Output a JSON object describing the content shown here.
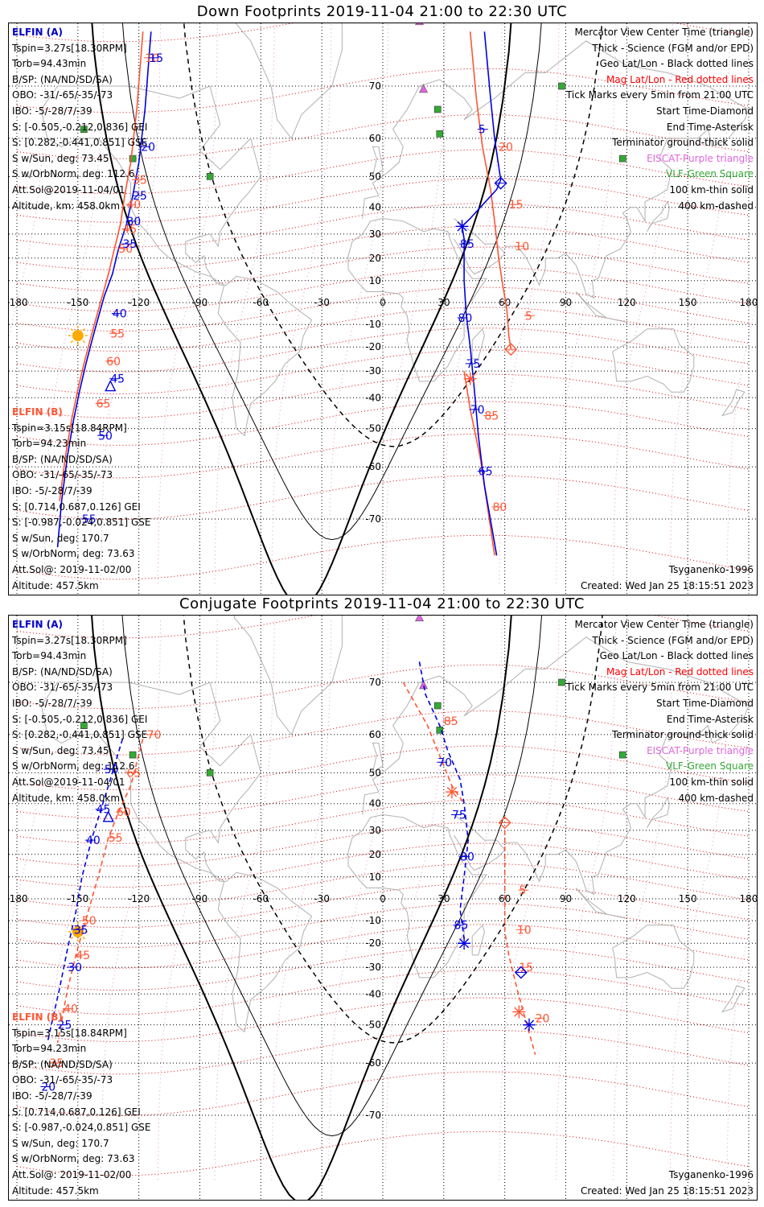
{
  "panels": [
    {
      "title": "Down Footprints 2019-11-04 21:00 to 22:30 UTC",
      "conjugate": false
    },
    {
      "title": "Conjugate Footprints 2019-11-04 21:00 to 22:30 UTC",
      "conjugate": true
    }
  ],
  "elfin_a": {
    "header": "ELFIN (A)",
    "lines": [
      "Tspin=3.27s[18.30RPM]",
      "Torb=94.43min",
      "B/SP: (NA/ND/SD/SA)",
      "OBO: -31/-65/-35/-73",
      "IBO: -5/-28/7/-39",
      "S: [-0.505,-0.212,0.836] GEI",
      "S: [0.282,-0.441,0.851] GSE",
      "S w/Sun, deg: 73.45",
      "S w/OrbNorm, deg: 112.6",
      "Att.Sol@2019-11-04/01",
      "Altitude, km: 458.0km"
    ]
  },
  "elfin_b": {
    "header": "ELFIN (B)",
    "lines": [
      "Tspin=3.15s[18.84RPM]",
      "Torb=94.23min",
      "B/SP: (NA/ND/SD/SA)",
      "OBO: -31/-65/-35/-73",
      "IBO: -5/-28/7/-39",
      "S: [0.714,0.687,0.126] GEI",
      "S: [-0.987,-0.024,0.851] GSE",
      "S w/Sun, deg: 170.7",
      "S w/OrbNorm, deg: 73.63",
      "Att.Sol@: 2019-11-02/00",
      "Altitude: 457.5km"
    ]
  },
  "legend": [
    {
      "text": "Mercator View Center Time (triangle)",
      "color": "#000000"
    },
    {
      "text": "Thick - Science (FGM and/or EPD)",
      "color": "#000000"
    },
    {
      "text": "Geo Lat/Lon - Black dotted lines",
      "color": "#000000"
    },
    {
      "text": "Mag Lat/Lon - Red dotted lines",
      "color": "#ff0000"
    },
    {
      "text": "Tick Marks every 5min from 21:00 UTC",
      "color": "#000000"
    },
    {
      "text": "Start Time-Diamond",
      "color": "#000000"
    },
    {
      "text": "End Time-Asterisk",
      "color": "#000000"
    },
    {
      "text": "Terminator ground-thick solid",
      "color": "#000000"
    },
    {
      "text": "EISCAT-Purple triangle",
      "color": "#dd66dd"
    },
    {
      "text": "VLF-Green Square",
      "color": "#33aa33"
    },
    {
      "text": "100 km-thin solid",
      "color": "#000000"
    },
    {
      "text": "400 km-dashed",
      "color": "#000000"
    }
  ],
  "footer": {
    "model": "Tsyganenko-1996",
    "created": "Created: Wed Jan 25 18:15:51 2023"
  },
  "map": {
    "lon_ticks": [
      -180,
      -150,
      -120,
      -90,
      -60,
      -30,
      0,
      30,
      60,
      90,
      120,
      150,
      180
    ],
    "lon_labels": [
      "-180",
      "-150",
      "-120",
      "-90",
      "-60",
      "-30",
      "0",
      "30",
      "60",
      "90",
      "120",
      "150",
      "180"
    ],
    "lat_ticks": [
      70,
      60,
      50,
      40,
      30,
      20,
      10,
      0,
      -10,
      -20,
      -30,
      -40,
      -50,
      -60,
      -70
    ],
    "lat_labels": [
      "70",
      "60",
      "50",
      "40",
      "30",
      "20",
      "10",
      "0",
      "-10",
      "-20",
      "-30",
      "-40",
      "-50",
      "-60",
      "-70"
    ]
  },
  "colors": {
    "elfin_a": "#0000dd",
    "elfin_b": "#ff5533",
    "mag_grid": "#dd0000",
    "eiscat": "#dd66dd",
    "vlf": "#33aa33",
    "sun": "#ffaa00",
    "coast": "#b0b0b0"
  },
  "chart_data": {
    "type": "scatter",
    "projection": "mercator",
    "xlim": [
      -180,
      180
    ],
    "ylim": [
      -70,
      70
    ],
    "down": {
      "elfin_a_track": [
        [
          -114,
          77
        ],
        [
          -117,
          66
        ],
        [
          -120,
          54
        ],
        [
          -123,
          44
        ],
        [
          -126,
          34
        ],
        [
          -130,
          24
        ],
        [
          -133,
          13
        ],
        [
          -137,
          3
        ],
        [
          -140,
          -7
        ],
        [
          -143,
          -17
        ],
        [
          -146,
          -27
        ],
        [
          -149,
          -37
        ],
        [
          -152,
          -47
        ],
        [
          -155,
          -57
        ],
        [
          -158,
          -67
        ],
        [
          -160,
          -74
        ]
      ],
      "elfin_a_ticks": [
        {
          "t": "15",
          "lon": -115,
          "lat": 74
        },
        {
          "t": "20",
          "lon": -119,
          "lat": 58
        },
        {
          "t": "25",
          "lon": -123,
          "lat": 44
        },
        {
          "t": "30",
          "lon": -126,
          "lat": 35
        },
        {
          "t": "35",
          "lon": -128,
          "lat": 26
        },
        {
          "t": "40",
          "lon": -133,
          "lat": -5
        },
        {
          "t": "45",
          "lon": -134,
          "lat": -33
        },
        {
          "t": "50",
          "lon": -140,
          "lat": -52
        },
        {
          "t": "55",
          "lon": -148,
          "lat": -70
        }
      ],
      "elfin_b_track": [
        [
          -118,
          77
        ],
        [
          -121,
          66
        ],
        [
          -124,
          54
        ],
        [
          -127,
          44
        ],
        [
          -129,
          34
        ],
        [
          -132,
          24
        ],
        [
          -135,
          13
        ],
        [
          -138,
          3
        ],
        [
          -141,
          -7
        ],
        [
          -144,
          -17
        ],
        [
          -147,
          -27
        ],
        [
          -150,
          -37
        ],
        [
          -153,
          -47
        ],
        [
          -156,
          -57
        ],
        [
          -159,
          -67
        ]
      ],
      "elfin_b_ticks": [
        {
          "t": "10",
          "lon": -117,
          "lat": 74
        },
        {
          "t": "35",
          "lon": -123,
          "lat": 49
        },
        {
          "t": "40",
          "lon": -126,
          "lat": 41
        },
        {
          "t": "45",
          "lon": -128,
          "lat": 32
        },
        {
          "t": "50",
          "lon": -130,
          "lat": 24
        },
        {
          "t": "55",
          "lon": -134,
          "lat": -14
        },
        {
          "t": "60",
          "lon": -136,
          "lat": -26
        },
        {
          "t": "65",
          "lon": -141,
          "lat": -42
        }
      ],
      "elfin_a_track2": [
        [
          50,
          77
        ],
        [
          53,
          68
        ],
        [
          55,
          60
        ],
        [
          58,
          49
        ],
        [
          56,
          46
        ],
        [
          43,
          36
        ],
        [
          39,
          33
        ],
        [
          40,
          28
        ],
        [
          40,
          10
        ],
        [
          41,
          -5
        ],
        [
          43,
          -20
        ],
        [
          45,
          -37
        ],
        [
          47,
          -52
        ],
        [
          50,
          -64
        ],
        [
          56,
          -75
        ]
      ],
      "elfin_a_ticks2": [
        {
          "t": "5",
          "lon": 47,
          "lat": 62
        },
        {
          "t": "85",
          "lon": 38,
          "lat": 26
        },
        {
          "t": "80",
          "lon": 37,
          "lat": -7
        },
        {
          "t": "75",
          "lon": 41,
          "lat": -27
        },
        {
          "t": "70",
          "lon": 43,
          "lat": -44
        },
        {
          "t": "65",
          "lon": 47,
          "lat": -61
        }
      ],
      "elfin_b_track2": [
        [
          43,
          77
        ],
        [
          46,
          68
        ],
        [
          49,
          58
        ],
        [
          53,
          46
        ],
        [
          55,
          35
        ],
        [
          57,
          20
        ],
        [
          59,
          8
        ],
        [
          61,
          -3
        ],
        [
          62,
          -15
        ],
        [
          63,
          -21
        ]
      ],
      "elfin_b_track3": [
        [
          40,
          -30
        ],
        [
          43,
          -44
        ],
        [
          48,
          -58
        ],
        [
          55,
          -75
        ]
      ],
      "elfin_b_ticks2": [
        {
          "t": "20",
          "lon": 57,
          "lat": 58
        },
        {
          "t": "15",
          "lon": 62,
          "lat": 41
        },
        {
          "t": "10",
          "lon": 65,
          "lat": 25
        },
        {
          "t": "5",
          "lon": 70,
          "lat": -6
        },
        {
          "t": "85",
          "lon": 50,
          "lat": -46
        },
        {
          "t": "80",
          "lon": 54,
          "lat": -68
        }
      ]
    },
    "conjugate": {
      "elfin_a_track": [
        [
          -128,
          59
        ],
        [
          -135,
          46
        ],
        [
          -139,
          37
        ],
        [
          -143,
          27
        ],
        [
          -148,
          10
        ],
        [
          -151,
          -6
        ],
        [
          -155,
          -22
        ],
        [
          -159,
          -38
        ],
        [
          -165,
          -55
        ]
      ],
      "elfin_a_ticks": [
        {
          "t": "50",
          "lon": -137,
          "lat": 51
        },
        {
          "t": "45",
          "lon": -141,
          "lat": 38
        },
        {
          "t": "40",
          "lon": -146,
          "lat": 26
        },
        {
          "t": "35",
          "lon": -152,
          "lat": -14
        },
        {
          "t": "30",
          "lon": -155,
          "lat": -30
        },
        {
          "t": "25",
          "lon": -160,
          "lat": -50
        },
        {
          "t": "20",
          "lon": -168,
          "lat": -65
        }
      ],
      "elfin_b_track": [
        [
          -118,
          59
        ],
        [
          -124,
          46
        ],
        [
          -130,
          37
        ],
        [
          -135,
          27
        ],
        [
          -140,
          10
        ],
        [
          -145,
          -6
        ],
        [
          -150,
          -22
        ],
        [
          -155,
          -38
        ],
        [
          -160,
          -55
        ]
      ],
      "elfin_b_ticks": [
        {
          "t": "70",
          "lon": -116,
          "lat": 60
        },
        {
          "t": "65",
          "lon": -126,
          "lat": 50
        },
        {
          "t": "60",
          "lon": -131,
          "lat": 37
        },
        {
          "t": "55",
          "lon": -135,
          "lat": 27
        },
        {
          "t": "50",
          "lon": -148,
          "lat": -10
        },
        {
          "t": "45",
          "lon": -151,
          "lat": -25
        },
        {
          "t": "40",
          "lon": -157,
          "lat": -45
        },
        {
          "t": "35",
          "lon": -164,
          "lat": -60
        }
      ],
      "elfin_a_track2": [
        [
          18,
          73
        ],
        [
          21,
          68
        ],
        [
          28,
          62
        ],
        [
          32,
          56
        ],
        [
          38,
          48
        ],
        [
          40,
          40
        ],
        [
          42,
          26
        ],
        [
          40,
          10
        ],
        [
          38,
          -5
        ],
        [
          40,
          -18
        ]
      ],
      "elfin_a_ticks2": [
        {
          "t": "70",
          "lon": 27,
          "lat": 53
        },
        {
          "t": "75",
          "lon": 34,
          "lat": 36
        },
        {
          "t": "80",
          "lon": 38,
          "lat": 19
        },
        {
          "t": "85",
          "lon": 35,
          "lat": -12
        }
      ],
      "elfin_b_track2": [
        [
          10,
          70
        ],
        [
          15,
          67
        ],
        [
          22,
          62
        ],
        [
          30,
          52
        ],
        [
          34,
          46
        ],
        [
          40,
          40
        ]
      ],
      "elfin_b_track3": [
        [
          60,
          30
        ],
        [
          60,
          15
        ],
        [
          60,
          5
        ],
        [
          60,
          -5
        ],
        [
          60,
          -15
        ],
        [
          62,
          -25
        ],
        [
          66,
          -38
        ],
        [
          70,
          -48
        ],
        [
          75,
          -58
        ]
      ],
      "elfin_b_ticks2": [
        {
          "t": "85",
          "lon": 30,
          "lat": 63
        },
        {
          "t": "5",
          "lon": 67,
          "lat": 4
        },
        {
          "t": "10",
          "lon": 66,
          "lat": -14
        },
        {
          "t": "15",
          "lon": 67,
          "lat": -30
        },
        {
          "t": "20",
          "lon": 75,
          "lat": -48
        }
      ]
    }
  }
}
